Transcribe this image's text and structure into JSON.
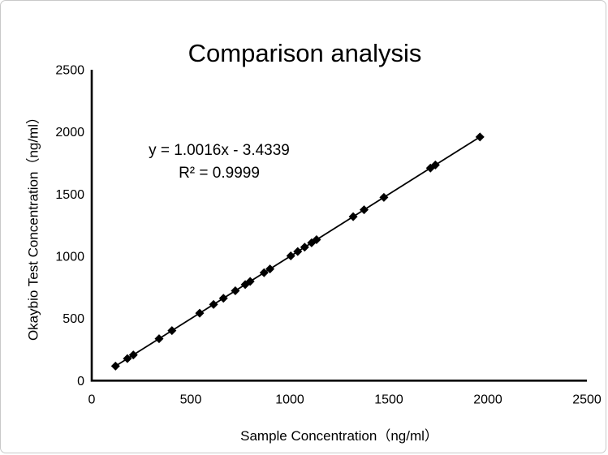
{
  "frame": {
    "background": "#ffffff",
    "border_color": "#c9c9c9"
  },
  "chart_data": {
    "type": "scatter",
    "title": "Comparison analysis",
    "xlabel": "Sample Concentration（ng/ml）",
    "ylabel": "Okaybio Test Concentration（ng/ml）",
    "xlim": [
      0,
      2500
    ],
    "ylim": [
      0,
      2500
    ],
    "xticks": [
      0,
      500,
      1000,
      1500,
      2000,
      2500
    ],
    "yticks": [
      0,
      500,
      1000,
      1500,
      2000,
      2500
    ],
    "grid": false,
    "legend_position": "none",
    "marker": "diamond",
    "colors": {
      "marker": "#000000",
      "trendline": "#000000",
      "axis": "#000000",
      "text": "#000000"
    },
    "trendline": {
      "type": "linear",
      "slope": 1.0016,
      "intercept": -3.4339
    },
    "annotations": {
      "equation": "y = 1.0016x - 3.4339",
      "r_squared": "R² = 0.9999"
    },
    "points": [
      [
        120,
        116.8
      ],
      [
        180,
        176.9
      ],
      [
        210,
        206.9
      ],
      [
        340,
        337.1
      ],
      [
        405,
        402.2
      ],
      [
        545,
        542.4
      ],
      [
        615,
        612.5
      ],
      [
        665,
        662.6
      ],
      [
        725,
        722.7
      ],
      [
        775,
        772.8
      ],
      [
        800,
        797.8
      ],
      [
        870,
        867.9
      ],
      [
        900,
        897.9
      ],
      [
        1005,
        1003.2
      ],
      [
        1040,
        1038.2
      ],
      [
        1075,
        1073.3
      ],
      [
        1110,
        1108.3
      ],
      [
        1135,
        1133.4
      ],
      [
        1320,
        1318.7
      ],
      [
        1375,
        1373.8
      ],
      [
        1475,
        1473.9
      ],
      [
        1710,
        1709.3
      ],
      [
        1735,
        1734.3
      ],
      [
        1960,
        1959.7
      ]
    ]
  }
}
